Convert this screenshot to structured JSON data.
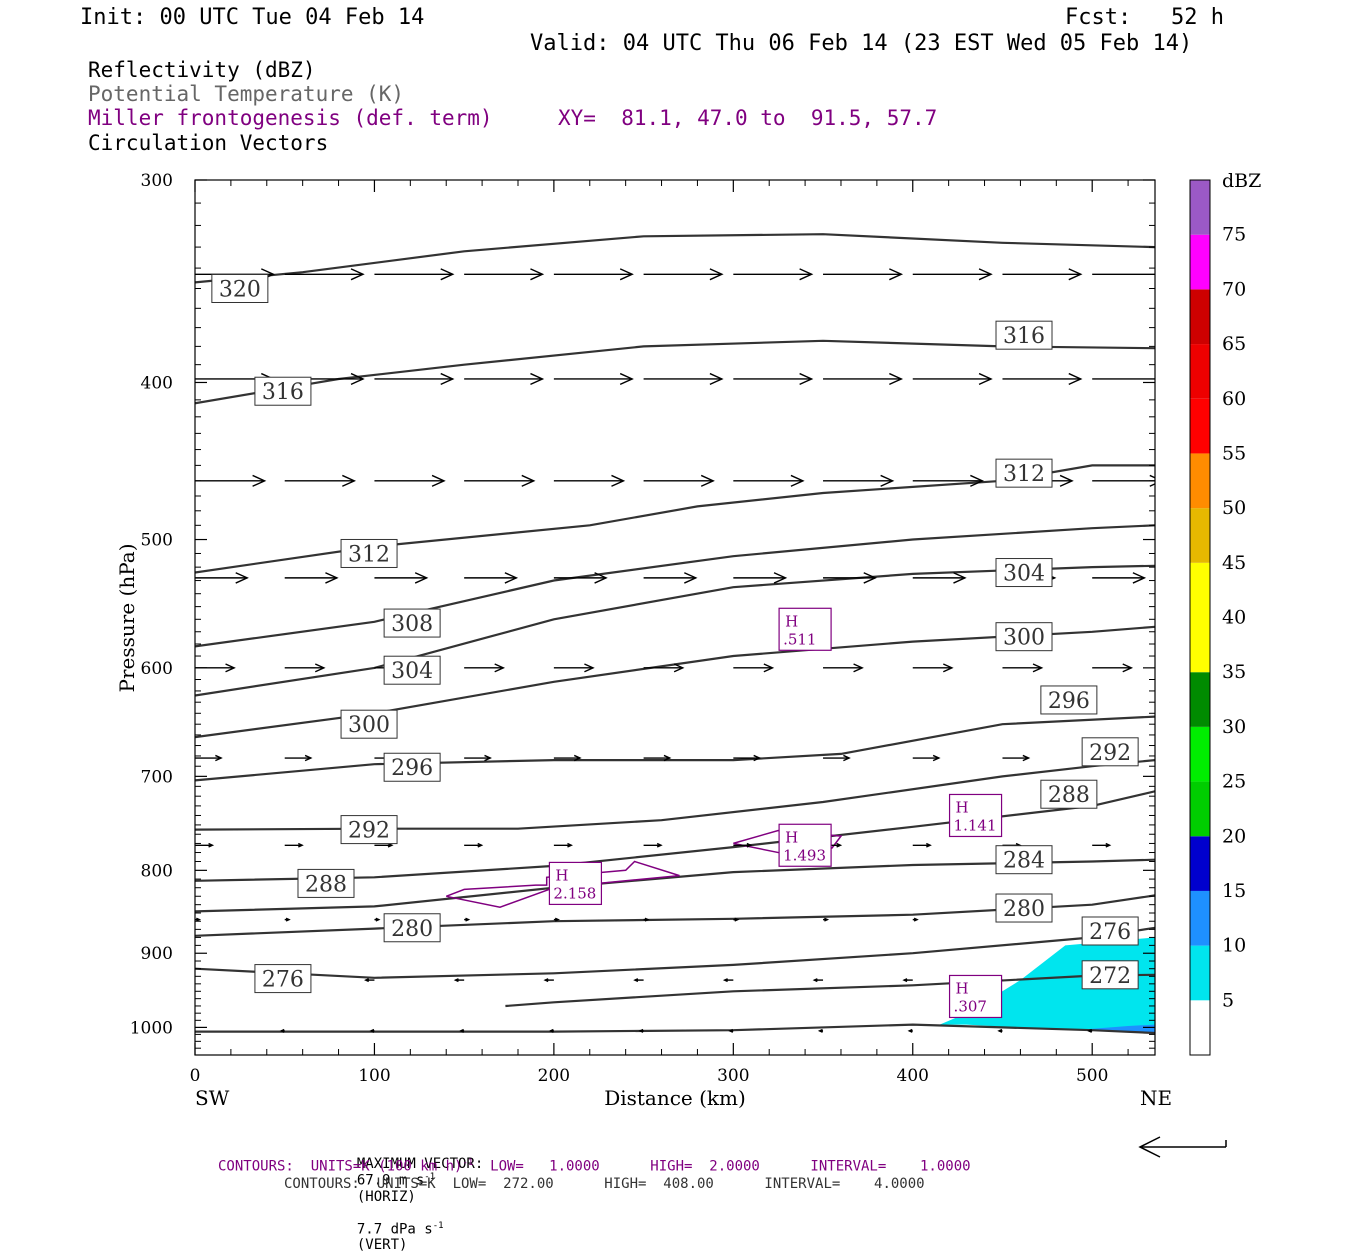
{
  "header": {
    "init": "Init: 00 UTC Tue 04 Feb 14",
    "fcst": "Fcst:   52 h",
    "valid": "Valid: 04 UTC Thu 06 Feb 14 (23 EST Wed 05 Feb 14)",
    "title1": "Reflectivity (dBZ)",
    "title2": "Potential Temperature (K)",
    "title3": "Miller frontogenesis (def. term)",
    "xy": "XY=  81.1, 47.0 to  91.5, 57.7",
    "title4": "Circulation Vectors"
  },
  "colors": {
    "frontogenesis": "#800080",
    "theta": "#333333",
    "potential_temperature_title": "#666666",
    "reflectivity_5": "#00e5ee",
    "reflectivity_10": "#1e90ff"
  },
  "chart_data": {
    "type": "line",
    "xlabel": "Distance (km)",
    "ylabel": "Pressure (hPa)",
    "xlim": [
      0,
      535
    ],
    "ylim": [
      1040,
      300
    ],
    "y_scale": "log",
    "xticks": [
      0,
      100,
      200,
      300,
      400,
      500
    ],
    "yticks": [
      300,
      400,
      500,
      600,
      700,
      800,
      900,
      1000
    ],
    "x_end_labels": {
      "left": "SW",
      "right": "NE"
    },
    "grid": false,
    "theta_contours": [
      {
        "level": 320,
        "x": [
          0,
          60,
          150,
          250,
          350,
          450,
          535
        ],
        "p": [
          347,
          342,
          332,
          325,
          324,
          328,
          330
        ]
      },
      {
        "level": 316,
        "x": [
          0,
          80,
          150,
          250,
          350,
          450,
          535
        ],
        "p": [
          412,
          398,
          390,
          380,
          377,
          380,
          381
        ]
      },
      {
        "level": 312,
        "x": [
          0,
          100,
          220,
          280,
          350,
          450,
          500,
          535
        ],
        "p": [
          524,
          505,
          490,
          477,
          468,
          460,
          450,
          450
        ]
      },
      {
        "level": 308,
        "x": [
          0,
          100,
          200,
          300,
          400,
          500,
          535
        ],
        "p": [
          582,
          562,
          530,
          512,
          500,
          492,
          490
        ]
      },
      {
        "level": 304,
        "x": [
          0,
          100,
          200,
          300,
          400,
          500,
          535
        ],
        "p": [
          624,
          600,
          560,
          535,
          525,
          520,
          519
        ]
      },
      {
        "level": 300,
        "x": [
          0,
          100,
          200,
          300,
          400,
          500,
          535
        ],
        "p": [
          662,
          640,
          612,
          590,
          578,
          570,
          566
        ]
      },
      {
        "level": 296,
        "x": [
          0,
          100,
          200,
          300,
          360,
          450,
          535
        ],
        "p": [
          704,
          688,
          684,
          684,
          678,
          650,
          643
        ]
      },
      {
        "level": 292,
        "x": [
          0,
          100,
          180,
          260,
          350,
          450,
          500,
          535
        ],
        "p": [
          755,
          754,
          754,
          745,
          726,
          700,
          690,
          684
        ]
      },
      {
        "level": 288,
        "x": [
          0,
          100,
          200,
          300,
          400,
          500,
          535
        ],
        "p": [
          812,
          808,
          795,
          774,
          752,
          730,
          715
        ]
      },
      {
        "level": 284,
        "x": [
          0,
          100,
          200,
          300,
          400,
          500,
          535
        ],
        "p": [
          848,
          842,
          820,
          802,
          794,
          790,
          788
        ]
      },
      {
        "level": 280,
        "x": [
          0,
          100,
          200,
          300,
          400,
          500,
          535
        ],
        "p": [
          878,
          869,
          860,
          857,
          852,
          840,
          829
        ]
      },
      {
        "level": 276,
        "x": [
          0,
          100,
          200,
          300,
          400,
          500,
          535
        ],
        "p": [
          920,
          932,
          926,
          915,
          900,
          880,
          868
        ]
      },
      {
        "level": 272,
        "x": [
          173,
          200,
          300,
          400,
          500,
          535
        ],
        "p": [
          970,
          965,
          950,
          942,
          929,
          928
        ]
      },
      {
        "level": 272,
        "x": [
          0,
          100,
          200,
          300,
          400,
          450,
          500,
          535
        ],
        "p": [
          1006,
          1006,
          1006,
          1004,
          996,
          1000,
          1004,
          1008
        ]
      }
    ],
    "theta_labels": [
      {
        "text": "320",
        "x": 25,
        "p": 350
      },
      {
        "text": "316",
        "x": 49,
        "p": 405
      },
      {
        "text": "316",
        "x": 462,
        "p": 374
      },
      {
        "text": "312",
        "x": 97,
        "p": 510
      },
      {
        "text": "312",
        "x": 462,
        "p": 455
      },
      {
        "text": "308",
        "x": 121,
        "p": 563
      },
      {
        "text": "304",
        "x": 121,
        "p": 602
      },
      {
        "text": "304",
        "x": 462,
        "p": 524
      },
      {
        "text": "300",
        "x": 97,
        "p": 650
      },
      {
        "text": "300",
        "x": 462,
        "p": 574
      },
      {
        "text": "296",
        "x": 121,
        "p": 691
      },
      {
        "text": "296",
        "x": 487,
        "p": 628
      },
      {
        "text": "292",
        "x": 97,
        "p": 755
      },
      {
        "text": "292",
        "x": 510,
        "p": 676
      },
      {
        "text": "288",
        "x": 73,
        "p": 815
      },
      {
        "text": "288",
        "x": 487,
        "p": 718
      },
      {
        "text": "284",
        "x": 462,
        "p": 788
      },
      {
        "text": "280",
        "x": 121,
        "p": 868
      },
      {
        "text": "280",
        "x": 462,
        "p": 844
      },
      {
        "text": "276",
        "x": 49,
        "p": 933
      },
      {
        "text": "276",
        "x": 510,
        "p": 872
      },
      {
        "text": "272",
        "x": 510,
        "p": 928
      }
    ],
    "frontogenesis_maxima": [
      {
        "label": "H",
        "value": ".511",
        "x": 340,
        "p": 568
      },
      {
        "label": "H",
        "value": "1.141",
        "x": 435,
        "p": 740
      },
      {
        "label": "H",
        "value": "1.493",
        "x": 340,
        "p": 772
      },
      {
        "label": "H",
        "value": "2.158",
        "x": 212,
        "p": 815
      },
      {
        "label": "H",
        "value": ".307",
        "x": 435,
        "p": 957
      }
    ],
    "frontogenesis_contours": [
      {
        "level": 1,
        "x": [
          140,
          150,
          190,
          196,
          196,
          240,
          245,
          270,
          240,
          200,
          170,
          140
        ],
        "p": [
          830,
          822,
          817,
          817,
          808,
          800,
          790,
          806,
          812,
          820,
          843,
          830
        ]
      },
      {
        "level": 1,
        "x": [
          300,
          325,
          360,
          355,
          330,
          300
        ],
        "p": [
          770,
          756,
          762,
          775,
          782,
          770
        ]
      }
    ],
    "reflectivity_levels": [
      5,
      10,
      15,
      20,
      25,
      30,
      35,
      40,
      45,
      50,
      55,
      60,
      65,
      70,
      75
    ],
    "reflectivity_colors": [
      "#00e5ee",
      "#1e90ff",
      "#0000cd",
      "#00cd00",
      "#00ee00",
      "#008b00",
      "#ffff00",
      "#ffff00",
      "#e6b800",
      "#ff8c00",
      "#ff0000",
      "#ee0000",
      "#cd0000",
      "#b00000",
      "#ff00ff"
    ],
    "colorbar_title": "dBZ",
    "colorbar_labels": [
      "5",
      "10",
      "15",
      "20",
      "25",
      "30",
      "35",
      "40",
      "45",
      "50",
      "55",
      "60",
      "65",
      "70",
      "75"
    ],
    "reflectivity_regions": [
      {
        "dbz": 5,
        "x": [
          415,
          430,
          460,
          485,
          535,
          535,
          500,
          470,
          430,
          415
        ],
        "p": [
          996,
          980,
          935,
          890,
          880,
          1008,
          1005,
          1002,
          996,
          996
        ]
      },
      {
        "dbz": 10,
        "x": [
          495,
          520,
          535,
          535,
          510,
          495
        ],
        "p": [
          1003,
          998,
          996,
          1008,
          1006,
          1003
        ]
      }
    ],
    "vector_rows": [
      {
        "p": 343,
        "x": [
          0,
          50,
          100,
          150,
          200,
          250,
          300,
          350,
          400,
          450,
          500
        ],
        "length": 0.9,
        "dir": 1
      },
      {
        "p": 398,
        "x": [
          0,
          50,
          100,
          150,
          200,
          250,
          300,
          350,
          400,
          450,
          500
        ],
        "length": 0.9,
        "dir": 1
      },
      {
        "p": 460,
        "x": [
          0,
          50,
          100,
          150,
          200,
          250,
          300,
          350,
          400,
          450,
          500
        ],
        "length": 0.8,
        "dir": 1
      },
      {
        "p": 528,
        "x": [
          0,
          50,
          100,
          150,
          200,
          250,
          300,
          350,
          400,
          450,
          500
        ],
        "length": 0.6,
        "dir": 1
      },
      {
        "p": 600,
        "x": [
          0,
          50,
          100,
          150,
          200,
          250,
          300,
          350,
          400,
          450,
          500
        ],
        "length": 0.45,
        "dir": 1
      },
      {
        "p": 682,
        "x": [
          0,
          50,
          100,
          150,
          200,
          250,
          300,
          350,
          400,
          450,
          500
        ],
        "length": 0.3,
        "dir": 1
      },
      {
        "p": 772,
        "x": [
          0,
          50,
          100,
          150,
          200,
          250,
          300,
          350,
          400,
          450,
          500
        ],
        "length": 0.2,
        "dir": 1
      },
      {
        "p": 858,
        "x": [
          0,
          50,
          100,
          150,
          200,
          250,
          300,
          350,
          400,
          450,
          500
        ],
        "length": 0.05,
        "dir": 1
      },
      {
        "p": 935,
        "x": [
          100,
          150,
          200,
          250,
          300,
          350,
          400,
          450,
          500
        ],
        "length": 0.1,
        "dir": -1
      },
      {
        "p": 1005,
        "x": [
          50,
          100,
          150,
          200,
          250,
          300,
          350,
          400,
          450,
          500
        ],
        "length": 0.04,
        "dir": -1
      }
    ]
  },
  "footer": {
    "max_vector_label": "MAXIMUM VECTOR:",
    "max_vector_horiz": "67.9 m s",
    "horiz_unit": "(HORIZ)",
    "max_vector_vert": "7.7 dPa s",
    "vert_unit": "(VERT)",
    "superscript": "-1",
    "contours1_a": "CONTOURS:  UNITS=K (100 km h)",
    "contours1_b": "  LOW=   1.0000      HIGH=  2.0000      INTERVAL=    1.0000",
    "contours2": "CONTOURS:  UNITS=K  LOW=  272.00      HIGH=  408.00      INTERVAL=    4.0000"
  }
}
